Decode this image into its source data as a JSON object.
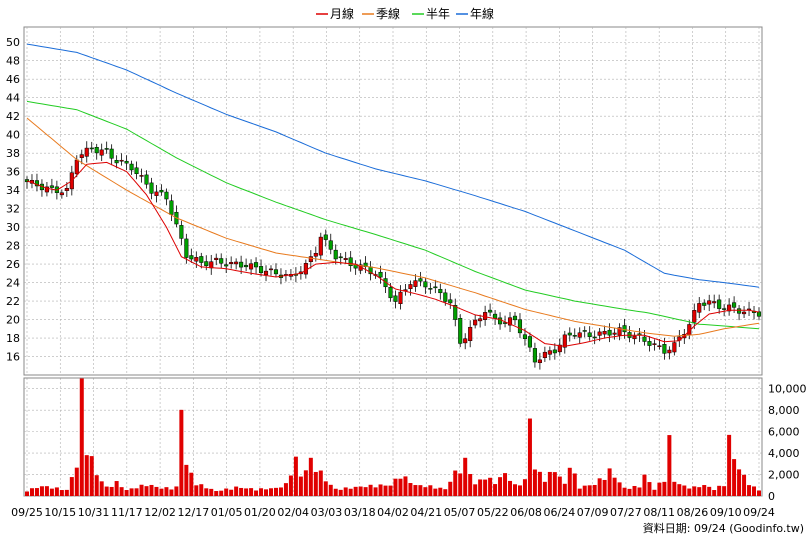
{
  "chart_data": [
    {
      "type": "candlestick",
      "legend": [
        {
          "name": "月線",
          "color": "#dd0000"
        },
        {
          "name": "季線",
          "color": "#e87a1e"
        },
        {
          "name": "半年",
          "color": "#22cc22"
        },
        {
          "name": "年線",
          "color": "#1a6cd8"
        }
      ],
      "ylim": [
        14,
        51
      ],
      "yticks": [
        "50",
        "48",
        "46",
        "44",
        "42",
        "40",
        "38",
        "36",
        "34",
        "32",
        "30",
        "28",
        "26",
        "24",
        "22",
        "20",
        "18",
        "16"
      ],
      "ytick_values": [
        50,
        48,
        46,
        44,
        42,
        40,
        38,
        36,
        34,
        32,
        30,
        28,
        26,
        24,
        22,
        20,
        18,
        16
      ],
      "grid": true,
      "candle_colors": {
        "up": "#e00000",
        "down": "#00a000"
      },
      "approx_close": [
        [
          0,
          34.9
        ],
        [
          5,
          34.0
        ],
        [
          8,
          33.9
        ],
        [
          10,
          37.6
        ],
        [
          13,
          38.5
        ],
        [
          16,
          38.1
        ],
        [
          18,
          37.2
        ],
        [
          21,
          36.5
        ],
        [
          25,
          34.0
        ],
        [
          28,
          33.2
        ],
        [
          32,
          27.0
        ],
        [
          35,
          26.1
        ],
        [
          38,
          26.3
        ],
        [
          41,
          26.0
        ],
        [
          44,
          25.9
        ],
        [
          47,
          25.4
        ],
        [
          50,
          25.0
        ],
        [
          53,
          24.6
        ],
        [
          56,
          25.8
        ],
        [
          58,
          27.5
        ],
        [
          59,
          29.0
        ],
        [
          62,
          26.9
        ],
        [
          65,
          26.0
        ],
        [
          68,
          25.5
        ],
        [
          70,
          25.0
        ],
        [
          72,
          23.5
        ],
        [
          74,
          21.9
        ],
        [
          77,
          24.1
        ],
        [
          80,
          23.8
        ],
        [
          83,
          22.8
        ],
        [
          85,
          21.8
        ],
        [
          87,
          17.5
        ],
        [
          89,
          19.0
        ],
        [
          92,
          21.0
        ],
        [
          94,
          20.0
        ],
        [
          96,
          19.7
        ],
        [
          98,
          20.0
        ],
        [
          100,
          17.8
        ],
        [
          102,
          15.6
        ],
        [
          104,
          16.2
        ],
        [
          106,
          16.7
        ],
        [
          108,
          18.0
        ],
        [
          110,
          18.6
        ],
        [
          113,
          18.3
        ],
        [
          116,
          18.5
        ],
        [
          119,
          18.8
        ],
        [
          122,
          18.2
        ],
        [
          125,
          17.5
        ],
        [
          128,
          16.6
        ],
        [
          130,
          17.2
        ],
        [
          131,
          18.0
        ],
        [
          133,
          19.5
        ],
        [
          135,
          21.8
        ],
        [
          137,
          21.9
        ],
        [
          139,
          21.4
        ],
        [
          141,
          21.3
        ],
        [
          143,
          21.0
        ],
        [
          145,
          20.8
        ],
        [
          147,
          20.7
        ]
      ],
      "approx_month_ma": [
        [
          0,
          35.0
        ],
        [
          4,
          34.2
        ],
        [
          6,
          34.0
        ],
        [
          9,
          35.0
        ],
        [
          12,
          36.8
        ],
        [
          16,
          37.0
        ],
        [
          20,
          36.0
        ],
        [
          24,
          33.5
        ],
        [
          28,
          30.0
        ],
        [
          31,
          26.8
        ],
        [
          35,
          25.7
        ],
        [
          40,
          25.5
        ],
        [
          45,
          25.0
        ],
        [
          50,
          24.6
        ],
        [
          55,
          25.0
        ],
        [
          58,
          26.0
        ],
        [
          62,
          26.2
        ],
        [
          66,
          26.0
        ],
        [
          70,
          24.8
        ],
        [
          74,
          23.3
        ],
        [
          78,
          22.8
        ],
        [
          82,
          22.2
        ],
        [
          86,
          21.4
        ],
        [
          90,
          20.5
        ],
        [
          95,
          20.0
        ],
        [
          100,
          18.8
        ],
        [
          104,
          17.4
        ],
        [
          108,
          17.1
        ],
        [
          112,
          17.5
        ],
        [
          116,
          18.0
        ],
        [
          120,
          18.3
        ],
        [
          124,
          18.3
        ],
        [
          128,
          17.6
        ],
        [
          131,
          17.7
        ],
        [
          134,
          19.3
        ],
        [
          137,
          20.6
        ],
        [
          141,
          21.0
        ],
        [
          145,
          21.0
        ],
        [
          147,
          20.8
        ]
      ],
      "approx_quarter_ma": [
        [
          0,
          41.8
        ],
        [
          10,
          37.3
        ],
        [
          20,
          34.0
        ],
        [
          30,
          31.0
        ],
        [
          40,
          28.8
        ],
        [
          50,
          27.2
        ],
        [
          60,
          26.4
        ],
        [
          70,
          25.6
        ],
        [
          80,
          24.5
        ],
        [
          90,
          22.9
        ],
        [
          100,
          21.1
        ],
        [
          110,
          19.8
        ],
        [
          120,
          18.9
        ],
        [
          125,
          18.5
        ],
        [
          130,
          18.2
        ],
        [
          135,
          18.4
        ],
        [
          140,
          19.0
        ],
        [
          147,
          19.6
        ]
      ],
      "approx_half_ma": [
        [
          0,
          43.6
        ],
        [
          10,
          42.7
        ],
        [
          20,
          40.6
        ],
        [
          30,
          37.5
        ],
        [
          40,
          34.8
        ],
        [
          50,
          32.7
        ],
        [
          60,
          30.8
        ],
        [
          70,
          29.2
        ],
        [
          80,
          27.5
        ],
        [
          90,
          25.2
        ],
        [
          100,
          23.2
        ],
        [
          110,
          22.0
        ],
        [
          120,
          21.1
        ],
        [
          125,
          20.7
        ],
        [
          130,
          20.1
        ],
        [
          135,
          19.5
        ],
        [
          140,
          19.3
        ],
        [
          147,
          19.0
        ]
      ],
      "approx_year_ma": [
        [
          0,
          49.8
        ],
        [
          10,
          48.9
        ],
        [
          20,
          47.0
        ],
        [
          30,
          44.5
        ],
        [
          40,
          42.2
        ],
        [
          50,
          40.3
        ],
        [
          60,
          38.0
        ],
        [
          70,
          36.3
        ],
        [
          80,
          35.0
        ],
        [
          90,
          33.4
        ],
        [
          100,
          31.7
        ],
        [
          110,
          29.6
        ],
        [
          120,
          27.5
        ],
        [
          128,
          25.0
        ],
        [
          135,
          24.3
        ],
        [
          140,
          24.0
        ],
        [
          147,
          23.5
        ]
      ]
    },
    {
      "type": "bar",
      "ylim": [
        0,
        11000
      ],
      "yticks": [
        "10,000",
        "8,000",
        "6,000",
        "4,000",
        "2,000",
        "0"
      ],
      "ytick_values": [
        10000,
        8000,
        6000,
        4000,
        2000,
        0
      ],
      "color": "#e00000",
      "approx_volume": [
        [
          0,
          600
        ],
        [
          3,
          1000
        ],
        [
          5,
          900
        ],
        [
          8,
          600
        ],
        [
          10,
          3200
        ],
        [
          11,
          11000
        ],
        [
          12,
          5200
        ],
        [
          13,
          3800
        ],
        [
          14,
          2200
        ],
        [
          16,
          900
        ],
        [
          18,
          1400
        ],
        [
          20,
          600
        ],
        [
          24,
          1200
        ],
        [
          27,
          800
        ],
        [
          30,
          900
        ],
        [
          31,
          9400
        ],
        [
          32,
          3200
        ],
        [
          34,
          1300
        ],
        [
          36,
          900
        ],
        [
          38,
          500
        ],
        [
          42,
          900
        ],
        [
          46,
          700
        ],
        [
          50,
          800
        ],
        [
          52,
          1200
        ],
        [
          54,
          3800
        ],
        [
          55,
          2000
        ],
        [
          57,
          3600
        ],
        [
          58,
          3200
        ],
        [
          60,
          1600
        ],
        [
          62,
          700
        ],
        [
          66,
          900
        ],
        [
          70,
          1100
        ],
        [
          73,
          1100
        ],
        [
          75,
          2200
        ],
        [
          78,
          1100
        ],
        [
          81,
          1000
        ],
        [
          84,
          700
        ],
        [
          86,
          2400
        ],
        [
          88,
          3600
        ],
        [
          90,
          1200
        ],
        [
          92,
          2000
        ],
        [
          94,
          1400
        ],
        [
          96,
          2300
        ],
        [
          98,
          1100
        ],
        [
          100,
          1600
        ],
        [
          101,
          8200
        ],
        [
          102,
          2800
        ],
        [
          104,
          1800
        ],
        [
          106,
          2700
        ],
        [
          108,
          1200
        ],
        [
          109,
          3300
        ],
        [
          111,
          900
        ],
        [
          114,
          1200
        ],
        [
          117,
          2600
        ],
        [
          120,
          800
        ],
        [
          123,
          1000
        ],
        [
          124,
          2100
        ],
        [
          126,
          700
        ],
        [
          128,
          1800
        ],
        [
          129,
          5800
        ],
        [
          130,
          1500
        ],
        [
          132,
          1000
        ],
        [
          134,
          900
        ],
        [
          136,
          1100
        ],
        [
          138,
          700
        ],
        [
          140,
          1200
        ],
        [
          141,
          5900
        ],
        [
          142,
          3800
        ],
        [
          144,
          2000
        ],
        [
          146,
          900
        ],
        [
          147,
          600
        ]
      ]
    }
  ],
  "x_labels": [
    "09/25",
    "10/15",
    "10/31",
    "11/17",
    "12/02",
    "12/17",
    "01/05",
    "01/20",
    "02/04",
    "03/03",
    "03/18",
    "04/02",
    "04/21",
    "05/07",
    "05/22",
    "06/08",
    "06/24",
    "07/09",
    "07/27",
    "08/11",
    "08/26",
    "09/10",
    "09/24"
  ],
  "footer": "資料日期: 09/24 (Goodinfo.tw)"
}
